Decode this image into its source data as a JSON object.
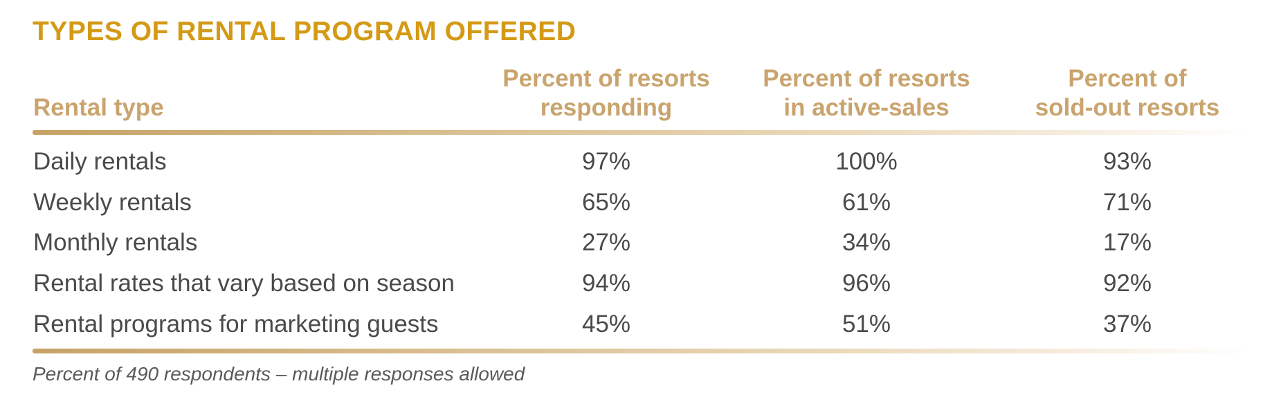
{
  "title": "TYPES OF RENTAL PROGRAM OFFERED",
  "colors": {
    "title": "#d49a15",
    "header": "#c9a46e",
    "text": "#4a4a4a",
    "rule": "#c6a266"
  },
  "chart_data": {
    "type": "table",
    "title": "TYPES OF RENTAL PROGRAM OFFERED",
    "row_header": "Rental type",
    "columns": [
      {
        "line1": "Percent of resorts",
        "line2": "responding"
      },
      {
        "line1": "Percent of resorts",
        "line2": "in active-sales"
      },
      {
        "line1": "Percent of",
        "line2": "sold-out resorts"
      }
    ],
    "rows": [
      {
        "label": "Daily rentals",
        "values": [
          "97%",
          "100%",
          "93%"
        ]
      },
      {
        "label": "Weekly rentals",
        "values": [
          "65%",
          "61%",
          "71%"
        ]
      },
      {
        "label": "Monthly rentals",
        "values": [
          "27%",
          "34%",
          "17%"
        ]
      },
      {
        "label": "Rental rates that vary based on season",
        "values": [
          "94%",
          "96%",
          "92%"
        ]
      },
      {
        "label": "Rental programs for marketing guests",
        "values": [
          "45%",
          "51%",
          "37%"
        ]
      }
    ],
    "note": "Percent of 490 respondents – multiple responses allowed"
  }
}
